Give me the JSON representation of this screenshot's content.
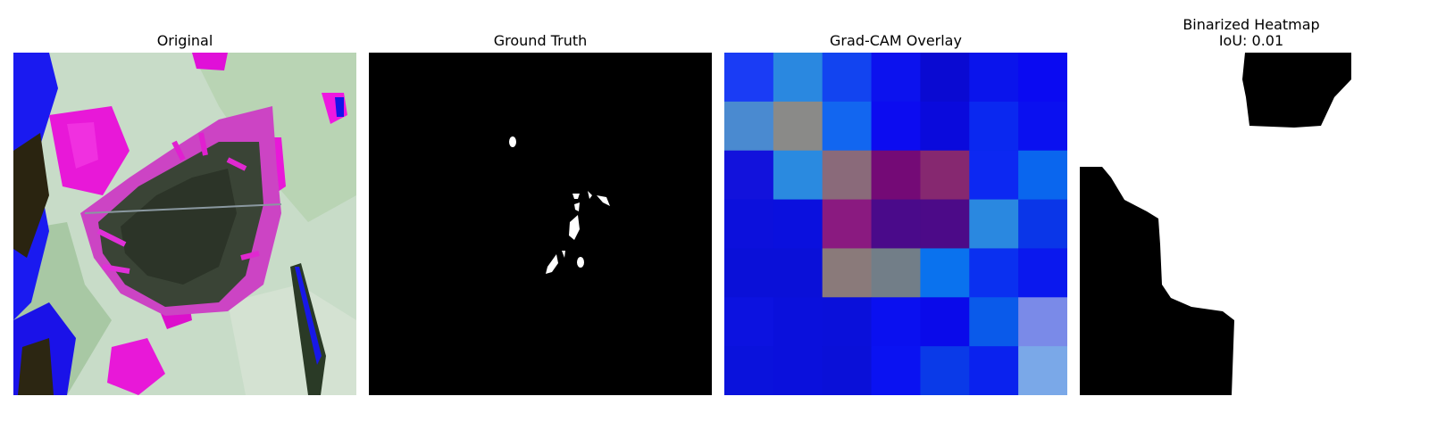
{
  "panels": [
    {
      "title": "Original",
      "alt": "leaf photograph"
    },
    {
      "title": "Ground Truth",
      "alt": "ground truth mask"
    },
    {
      "title": "Grad-CAM Overlay",
      "alt": "grad-cam heatmap overlay"
    },
    {
      "title": "Binarized Heatmap",
      "subtitle": "IoU: 0.01",
      "alt": "binarized heatmap"
    }
  ],
  "gradcam": {
    "grid": [
      [
        "#1a3cf5",
        "#2a88e0",
        "#1244f0",
        "#0c12ee",
        "#0a0ad2",
        "#0a14ec",
        "#0a0af2"
      ],
      [
        "#4a8ad0",
        "#8a8a88",
        "#1266f0",
        "#0c0cf0",
        "#0a0adc",
        "#0a28f0",
        "#0a10f0"
      ],
      [
        "#1212dc",
        "#2a8ae0",
        "#8a6a7a",
        "#740a76",
        "#862870",
        "#0c28f2",
        "#0a66ee"
      ],
      [
        "#0c10dc",
        "#0a10de",
        "#8a1a80",
        "#4a0a8a",
        "#4c0a88",
        "#2a88e0",
        "#0a36e8"
      ],
      [
        "#0a10d8",
        "#0a10d8",
        "#8a7a7a",
        "#727e88",
        "#0a72ee",
        "#0a30f0",
        "#0a18ee"
      ],
      [
        "#0c12e0",
        "#0a10dc",
        "#0a10da",
        "#0a10f0",
        "#0a0aea",
        "#0a5aea",
        "#7a8ae8"
      ],
      [
        "#0a12dc",
        "#0a10dc",
        "#0a10d8",
        "#0a12f2",
        "#0a3ae8",
        "#0a22ee",
        "#7aa8e8"
      ]
    ]
  }
}
